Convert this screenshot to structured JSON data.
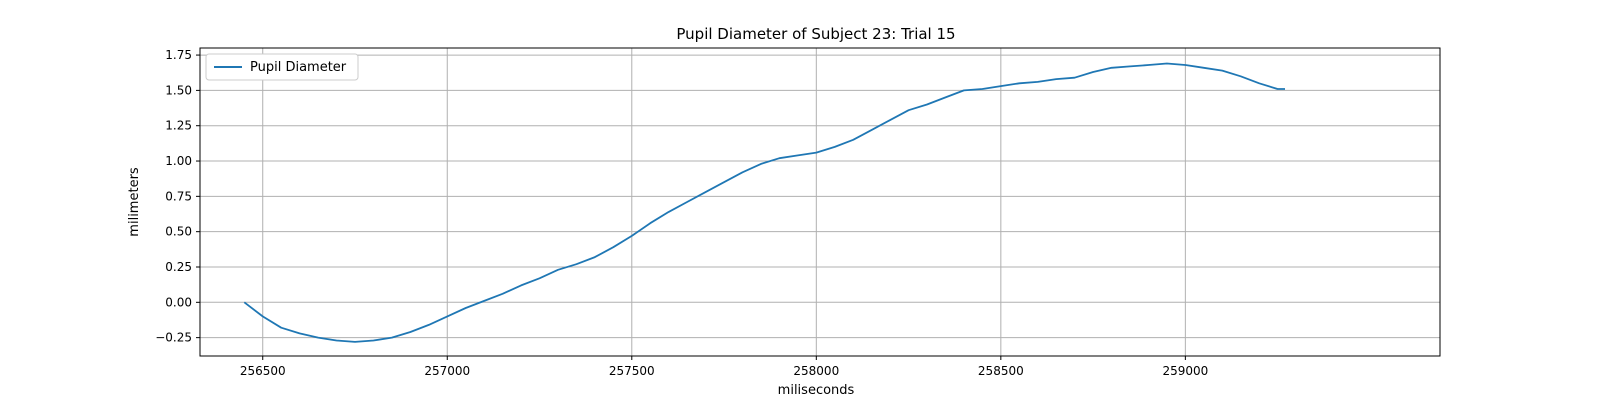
{
  "chart_data": {
    "type": "line",
    "title": "Pupil Diameter of Subject 23: Trial 15",
    "xlabel": "miliseconds",
    "ylabel": "milimeters",
    "xlim": [
      256330,
      259690
    ],
    "ylim": [
      -0.38,
      1.8
    ],
    "xticks": [
      256500,
      257000,
      257500,
      258000,
      258500,
      259000
    ],
    "yticks": [
      -0.25,
      0.0,
      0.25,
      0.5,
      0.75,
      1.0,
      1.25,
      1.5,
      1.75
    ],
    "ytick_labels": [
      "−0.25",
      "0.00",
      "0.25",
      "0.50",
      "0.75",
      "1.00",
      "1.25",
      "1.50",
      "1.75"
    ],
    "grid": true,
    "legend": {
      "position": "upper-left",
      "entries": [
        "Pupil Diameter"
      ]
    },
    "series": [
      {
        "name": "Pupil Diameter",
        "color": "#1f77b4",
        "x": [
          256450,
          256500,
          256550,
          256600,
          256650,
          256700,
          256750,
          256800,
          256850,
          256900,
          256950,
          257000,
          257050,
          257100,
          257150,
          257200,
          257250,
          257300,
          257350,
          257400,
          257450,
          257500,
          257550,
          257600,
          257650,
          257700,
          257750,
          257800,
          257850,
          257900,
          257950,
          258000,
          258050,
          258100,
          258150,
          258200,
          258250,
          258300,
          258350,
          258400,
          258450,
          258500,
          258550,
          258600,
          258650,
          258700,
          258750,
          258800,
          258850,
          258900,
          258950,
          259000,
          259050,
          259100,
          259150,
          259200,
          259250,
          259270
        ],
        "y": [
          0.0,
          -0.1,
          -0.18,
          -0.22,
          -0.25,
          -0.27,
          -0.28,
          -0.27,
          -0.25,
          -0.21,
          -0.16,
          -0.1,
          -0.04,
          0.01,
          0.06,
          0.12,
          0.17,
          0.23,
          0.27,
          0.32,
          0.39,
          0.47,
          0.56,
          0.64,
          0.71,
          0.78,
          0.85,
          0.92,
          0.98,
          1.02,
          1.04,
          1.06,
          1.1,
          1.15,
          1.22,
          1.29,
          1.36,
          1.4,
          1.45,
          1.5,
          1.51,
          1.53,
          1.55,
          1.56,
          1.58,
          1.59,
          1.63,
          1.66,
          1.67,
          1.68,
          1.69,
          1.68,
          1.66,
          1.64,
          1.6,
          1.55,
          1.51,
          1.51
        ]
      }
    ]
  }
}
